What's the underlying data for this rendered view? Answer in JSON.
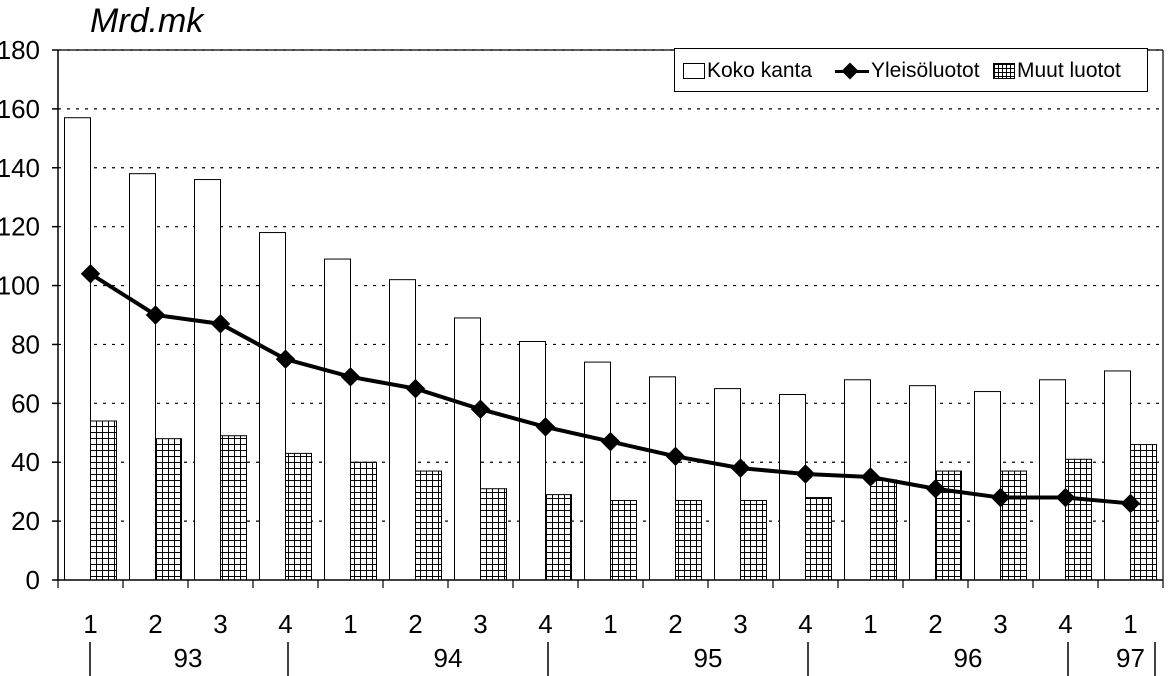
{
  "chart_data": {
    "type": "bar",
    "y_axis_title": "Mrd.mk",
    "ylim": [
      0,
      180
    ],
    "y_ticks": [
      0,
      20,
      40,
      60,
      80,
      100,
      120,
      140,
      160,
      180
    ],
    "grid": "horizontal dotted",
    "legend_position": "top-right",
    "categories": [
      "1",
      "2",
      "3",
      "4",
      "1",
      "2",
      "3",
      "4",
      "1",
      "2",
      "3",
      "4",
      "1",
      "2",
      "3",
      "4",
      "1"
    ],
    "year_groups": [
      {
        "label": "93",
        "quarters": 4
      },
      {
        "label": "94",
        "quarters": 4
      },
      {
        "label": "95",
        "quarters": 4
      },
      {
        "label": "96",
        "quarters": 4
      },
      {
        "label": "97",
        "quarters": 1
      }
    ],
    "series": [
      {
        "name": "Koko kanta",
        "type": "bar",
        "style": "white",
        "values": [
          157,
          138,
          136,
          118,
          109,
          102,
          89,
          81,
          74,
          69,
          65,
          63,
          68,
          66,
          64,
          68,
          71
        ]
      },
      {
        "name": "Yleisöluotot",
        "type": "line",
        "style": "black diamond markers",
        "values": [
          104,
          90,
          87,
          75,
          69,
          65,
          58,
          52,
          47,
          42,
          38,
          36,
          35,
          31,
          28,
          28,
          26
        ]
      },
      {
        "name": "Muut luotot",
        "type": "bar",
        "style": "grid hatched",
        "values": [
          54,
          48,
          49,
          43,
          40,
          37,
          31,
          29,
          27,
          27,
          27,
          28,
          34,
          37,
          37,
          41,
          46
        ]
      }
    ]
  }
}
